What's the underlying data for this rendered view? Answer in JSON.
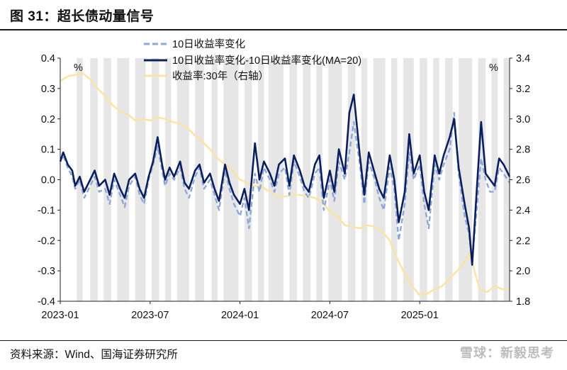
{
  "title": "图 31：超长债动量信号",
  "source": "资料来源：Wind、国海证券研究所",
  "watermark": "雪球：新毅思考",
  "chart_data": {
    "type": "line",
    "left_unit": "%",
    "right_unit": "%",
    "left_ylim": [
      -0.4,
      0.4
    ],
    "right_ylim": [
      1.8,
      3.4
    ],
    "left_yticks": [
      "0.4",
      "0.3",
      "0.2",
      "0.1",
      "0.0",
      "-0.1",
      "-0.2",
      "-0.3",
      "-0.4"
    ],
    "right_yticks": [
      "3.4",
      "3.2",
      "3.0",
      "2.8",
      "2.6",
      "2.4",
      "2.2",
      "2.0",
      "1.8"
    ],
    "x_range_months": [
      0,
      30
    ],
    "x_ticks": [
      {
        "m": 0,
        "label": "2023-01"
      },
      {
        "m": 6,
        "label": "2023-07"
      },
      {
        "m": 12,
        "label": "2024-01"
      },
      {
        "m": 18,
        "label": "2024-07"
      },
      {
        "m": 24,
        "label": "2025-01"
      }
    ],
    "shaded_periods_months": [
      [
        1.1,
        1.5
      ],
      [
        2.0,
        2.5
      ],
      [
        2.9,
        3.4
      ],
      [
        3.8,
        4.6
      ],
      [
        5.0,
        5.7
      ],
      [
        6.1,
        6.6
      ],
      [
        7.0,
        7.4
      ],
      [
        7.8,
        8.6
      ],
      [
        9.0,
        9.6
      ],
      [
        10.1,
        10.5
      ],
      [
        10.9,
        11.9
      ],
      [
        12.3,
        12.8
      ],
      [
        13.2,
        13.6
      ],
      [
        13.9,
        14.9
      ],
      [
        15.3,
        15.8
      ],
      [
        16.2,
        16.7
      ],
      [
        17.1,
        17.5
      ],
      [
        17.9,
        18.8
      ],
      [
        19.2,
        19.7
      ],
      [
        20.1,
        20.5
      ],
      [
        20.9,
        21.7
      ],
      [
        22.1,
        22.5
      ],
      [
        22.9,
        23.6
      ],
      [
        24.0,
        24.5
      ],
      [
        24.9,
        25.3
      ],
      [
        25.7,
        26.2
      ],
      [
        26.6,
        27.5
      ],
      [
        27.9,
        28.4
      ],
      [
        28.8,
        29.2
      ],
      [
        29.6,
        30.0
      ]
    ],
    "series": [
      {
        "name": "10日收益率变化",
        "axis": "left",
        "style": "dashed",
        "color": "#8ea7d8",
        "x": [
          0,
          0.2,
          0.5,
          0.8,
          1.0,
          1.3,
          1.6,
          2.0,
          2.3,
          2.6,
          3.0,
          3.3,
          3.6,
          4.0,
          4.3,
          4.6,
          5.0,
          5.3,
          5.6,
          5.9,
          6.2,
          6.5,
          6.8,
          7.0,
          7.3,
          7.6,
          8.0,
          8.3,
          8.6,
          9.0,
          9.3,
          9.6,
          10.0,
          10.3,
          10.6,
          11.0,
          11.3,
          11.6,
          12.0,
          12.3,
          12.6,
          13.0,
          13.3,
          13.6,
          14.0,
          14.3,
          14.6,
          15.0,
          15.3,
          15.6,
          16.0,
          16.3,
          16.6,
          17.0,
          17.3,
          17.6,
          18.0,
          18.3,
          18.6,
          19.0,
          19.3,
          19.6,
          20.0,
          20.3,
          20.6,
          21.0,
          21.3,
          21.6,
          22.0,
          22.3,
          22.6,
          23.0,
          23.3,
          23.6,
          24.0,
          24.3,
          24.6,
          25.0,
          25.3,
          25.6,
          26.0,
          26.3,
          26.6,
          27.0,
          27.3,
          27.5,
          27.8,
          28.1,
          28.4,
          28.7,
          29.0,
          29.3,
          29.6,
          30.0
        ],
        "values": [
          0.06,
          0.08,
          0.04,
          0.01,
          -0.03,
          0.0,
          -0.06,
          -0.02,
          0.01,
          -0.04,
          -0.03,
          -0.08,
          0.0,
          -0.05,
          -0.09,
          -0.02,
          0.01,
          -0.05,
          -0.08,
          0.0,
          0.05,
          0.11,
          0.03,
          -0.02,
          0.02,
          0.0,
          0.04,
          -0.03,
          -0.06,
          0.01,
          0.04,
          -0.03,
          0.0,
          -0.05,
          -0.1,
          0.03,
          -0.03,
          -0.08,
          -0.12,
          -0.06,
          -0.16,
          0.02,
          -0.04,
          0.04,
          0.0,
          -0.04,
          0.02,
          0.04,
          -0.05,
          0.06,
          0.01,
          -0.04,
          -0.06,
          0.02,
          0.04,
          -0.1,
          0.0,
          -0.07,
          0.06,
          0.0,
          0.09,
          0.19,
          0.05,
          -0.08,
          0.06,
          0.0,
          -0.06,
          -0.1,
          0.04,
          -0.03,
          -0.2,
          -0.08,
          0.09,
          0.0,
          0.05,
          -0.08,
          -0.16,
          0.05,
          0.0,
          0.05,
          0.1,
          0.22,
          0.02,
          -0.12,
          -0.18,
          -0.27,
          -0.1,
          0.07,
          0.0,
          -0.04,
          -0.04,
          0.04,
          0.02,
          -0.01
        ]
      },
      {
        "name": "10日收益率变化-10日收益率变化(MA=20)",
        "axis": "left",
        "style": "solid",
        "color": "#0b1f5c",
        "x": [
          0,
          0.2,
          0.5,
          0.8,
          1.0,
          1.3,
          1.6,
          2.0,
          2.3,
          2.6,
          3.0,
          3.3,
          3.6,
          4.0,
          4.3,
          4.6,
          5.0,
          5.3,
          5.6,
          5.9,
          6.2,
          6.5,
          6.8,
          7.0,
          7.3,
          7.6,
          8.0,
          8.3,
          8.6,
          9.0,
          9.3,
          9.6,
          10.0,
          10.3,
          10.6,
          11.0,
          11.3,
          11.6,
          12.0,
          12.3,
          12.6,
          13.0,
          13.3,
          13.6,
          14.0,
          14.3,
          14.6,
          15.0,
          15.3,
          15.6,
          16.0,
          16.3,
          16.6,
          17.0,
          17.3,
          17.6,
          18.0,
          18.3,
          18.6,
          19.0,
          19.3,
          19.6,
          20.0,
          20.3,
          20.6,
          21.0,
          21.3,
          21.6,
          22.0,
          22.3,
          22.6,
          23.0,
          23.3,
          23.6,
          24.0,
          24.3,
          24.6,
          25.0,
          25.3,
          25.6,
          26.0,
          26.3,
          26.6,
          27.0,
          27.3,
          27.5,
          27.8,
          28.1,
          28.4,
          28.7,
          29.0,
          29.3,
          29.6,
          30.0
        ],
        "values": [
          0.06,
          0.09,
          0.05,
          0.03,
          -0.02,
          0.01,
          -0.04,
          0.0,
          0.03,
          -0.02,
          0.0,
          -0.05,
          0.02,
          -0.03,
          -0.06,
          0.0,
          0.02,
          -0.03,
          -0.06,
          0.01,
          0.06,
          0.14,
          0.05,
          0.0,
          0.04,
          0.01,
          0.06,
          -0.01,
          -0.03,
          0.03,
          0.05,
          -0.01,
          0.02,
          -0.03,
          -0.07,
          0.05,
          -0.01,
          -0.05,
          -0.08,
          -0.03,
          -0.1,
          0.12,
          0.0,
          0.06,
          0.02,
          -0.02,
          0.05,
          0.07,
          -0.02,
          0.08,
          0.03,
          -0.02,
          -0.04,
          0.05,
          0.08,
          -0.06,
          0.03,
          -0.04,
          0.1,
          0.02,
          0.22,
          0.28,
          0.08,
          -0.05,
          0.09,
          0.02,
          -0.03,
          -0.06,
          0.08,
          0.0,
          -0.14,
          -0.04,
          0.15,
          0.02,
          0.08,
          -0.04,
          -0.1,
          0.08,
          0.02,
          0.08,
          0.14,
          0.2,
          0.04,
          -0.08,
          -0.16,
          -0.28,
          -0.04,
          0.19,
          0.02,
          0.0,
          -0.02,
          0.07,
          0.05,
          0.01
        ]
      },
      {
        "name": "收益率:30年（右轴）",
        "axis": "right",
        "style": "solid",
        "color": "#fbe3a2",
        "x": [
          0,
          0.5,
          1.0,
          1.5,
          2.0,
          2.5,
          3.0,
          3.5,
          4.0,
          4.5,
          5.0,
          5.5,
          6.0,
          6.5,
          7.0,
          7.5,
          8.0,
          8.5,
          9.0,
          9.5,
          10.0,
          10.5,
          11.0,
          11.5,
          12.0,
          12.5,
          13.0,
          13.5,
          14.0,
          14.5,
          15.0,
          15.5,
          16.0,
          16.5,
          17.0,
          17.5,
          18.0,
          18.5,
          19.0,
          19.5,
          20.0,
          20.5,
          21.0,
          21.5,
          22.0,
          22.5,
          23.0,
          23.5,
          24.0,
          24.5,
          25.0,
          25.5,
          26.0,
          26.5,
          27.0,
          27.3,
          27.6,
          28.0,
          28.5,
          29.0,
          29.5,
          30.0
        ],
        "values": [
          3.25,
          3.28,
          3.29,
          3.3,
          3.26,
          3.2,
          3.15,
          3.09,
          3.05,
          3.03,
          2.99,
          3.0,
          2.99,
          3.01,
          3.0,
          2.98,
          2.97,
          2.94,
          2.89,
          2.85,
          2.8,
          2.74,
          2.7,
          2.66,
          2.6,
          2.58,
          2.56,
          2.55,
          2.52,
          2.49,
          2.49,
          2.5,
          2.5,
          2.49,
          2.48,
          2.45,
          2.39,
          2.36,
          2.3,
          2.29,
          2.28,
          2.3,
          2.29,
          2.26,
          2.2,
          2.08,
          1.98,
          1.9,
          1.84,
          1.85,
          1.88,
          1.9,
          1.95,
          2.0,
          2.06,
          2.11,
          2.02,
          1.88,
          1.86,
          1.9,
          1.88,
          1.88
        ]
      }
    ],
    "legend": [
      "10日收益率变化",
      "10日收益率变化-10日收益率变化(MA=20)",
      "收益率:30年（右轴）"
    ]
  }
}
